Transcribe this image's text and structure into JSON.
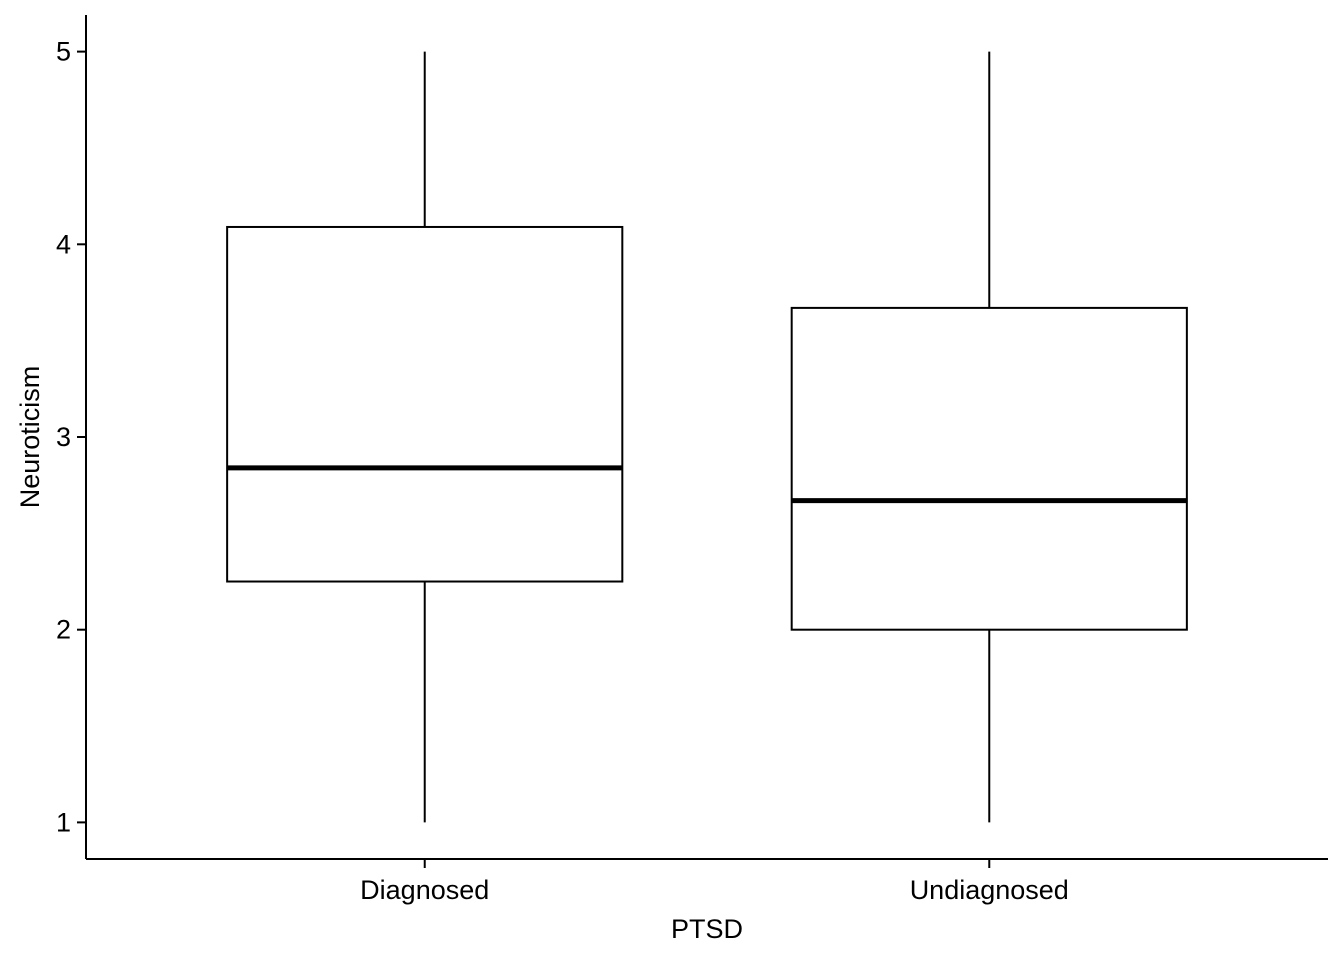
{
  "chart_data": {
    "type": "boxplot",
    "title": "",
    "xlabel": "PTSD",
    "ylabel": "Neuroticism",
    "ylim": [
      0.81,
      5.19
    ],
    "yticks": [
      "1",
      "2",
      "3",
      "4",
      "5"
    ],
    "grid": false,
    "legend": "none",
    "categories": [
      "Diagnosed",
      "Undiagnosed"
    ],
    "boxes": [
      {
        "category": "Diagnosed",
        "min": 1,
        "q1": 2.25,
        "median": 2.84,
        "q3": 4.09,
        "max": 5
      },
      {
        "category": "Undiagnosed",
        "min": 1,
        "q1": 2.0,
        "median": 2.67,
        "q3": 3.67,
        "max": 5
      }
    ]
  }
}
